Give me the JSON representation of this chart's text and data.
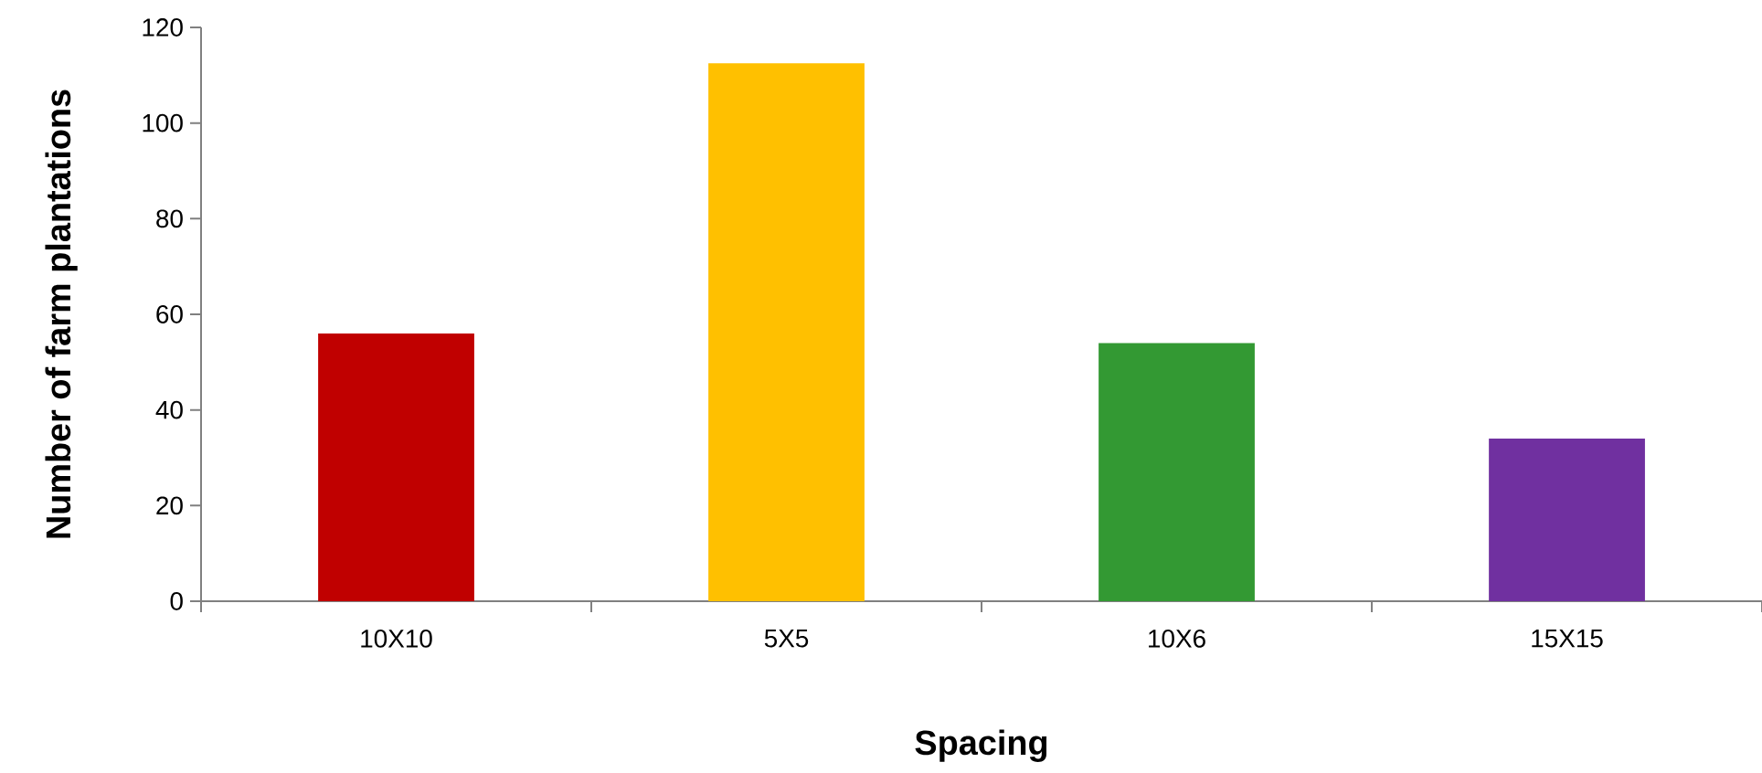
{
  "chart_data": {
    "type": "bar",
    "xlabel": "Spacing",
    "ylabel": "Number of farm plantations",
    "categories": [
      "10X10",
      "5X5",
      "10X6",
      "15X15"
    ],
    "values": [
      56,
      112.5,
      54,
      34
    ],
    "colors": [
      "#c00000",
      "#ffc000",
      "#339933",
      "#7030a0"
    ],
    "ylim": [
      0,
      120
    ],
    "yticks": [
      0,
      20,
      40,
      60,
      80,
      100,
      120
    ],
    "grid": false
  }
}
